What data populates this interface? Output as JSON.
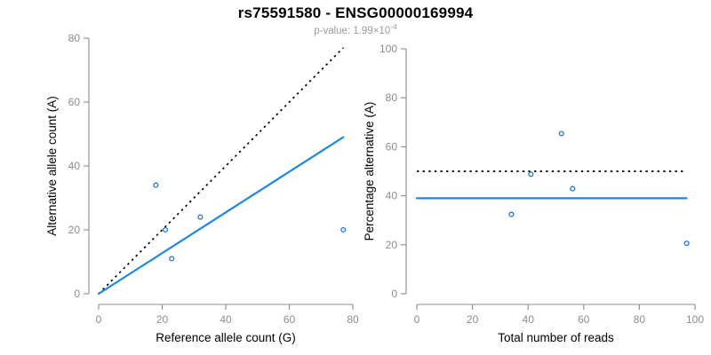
{
  "header": {
    "title": "rs75591580 - ENSG00000169994",
    "subtitle_prefix": "p-value: 1.99×10",
    "subtitle_exponent": "-4"
  },
  "colors": {
    "fit_line": "#1E87E6",
    "point": "#1C77D2",
    "identity_line": "#000000",
    "axis": "#8c8c8c",
    "tick_label": "#8c8c8c",
    "axis_title": "#000000",
    "subtitle": "#9a9a9a"
  },
  "chart_data": [
    {
      "id": "allele-count-scatter",
      "type": "scatter",
      "xlabel": "Reference allele count (G)",
      "ylabel": "Alternative allele count (A)",
      "xlim": [
        0,
        80
      ],
      "ylim": [
        0,
        80
      ],
      "xticks": [
        0,
        20,
        40,
        60,
        80
      ],
      "yticks": [
        0,
        20,
        40,
        60,
        80
      ],
      "grid": false,
      "points": [
        {
          "x": 18,
          "y": 34
        },
        {
          "x": 21,
          "y": 20
        },
        {
          "x": 23,
          "y": 11
        },
        {
          "x": 32,
          "y": 24
        },
        {
          "x": 77,
          "y": 20
        }
      ],
      "lines": [
        {
          "name": "identity-line",
          "style": "dotted",
          "color_key": "identity_line",
          "x1": 0,
          "y1": 0,
          "x2": 77,
          "y2": 77
        },
        {
          "name": "fit-line",
          "style": "solid",
          "color_key": "fit_line",
          "x1": 0,
          "y1": 0,
          "x2": 77,
          "y2": 49
        }
      ]
    },
    {
      "id": "percentage-scatter",
      "type": "scatter",
      "xlabel": "Total number of reads",
      "ylabel": "Percentage alternative (A)",
      "xlim": [
        0,
        100
      ],
      "ylim": [
        0,
        100
      ],
      "xticks": [
        0,
        20,
        40,
        60,
        80,
        100
      ],
      "yticks": [
        0,
        20,
        40,
        60,
        80,
        100
      ],
      "grid": false,
      "points": [
        {
          "x": 34,
          "y": 32.4
        },
        {
          "x": 41,
          "y": 48.8
        },
        {
          "x": 52,
          "y": 65.4
        },
        {
          "x": 56,
          "y": 42.9
        },
        {
          "x": 97,
          "y": 20.6
        }
      ],
      "lines": [
        {
          "name": "expected-50pct-line",
          "style": "dotted",
          "color_key": "identity_line",
          "x1": 0,
          "y1": 50,
          "x2": 97,
          "y2": 50
        },
        {
          "name": "observed-pct-line",
          "style": "solid",
          "color_key": "fit_line",
          "x1": 0,
          "y1": 39,
          "x2": 97,
          "y2": 39
        }
      ]
    }
  ]
}
